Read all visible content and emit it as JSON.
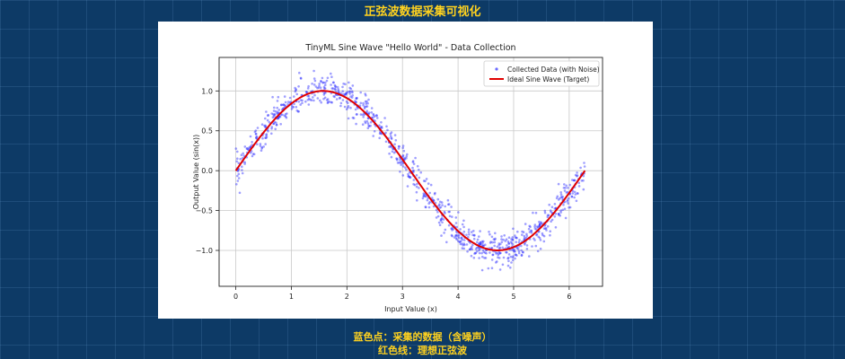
{
  "page": {
    "title": "正弦波数据采集可视化",
    "caption_lines": [
      "蓝色点：采集的数据（含噪声）",
      "红色线：理想正弦波"
    ]
  },
  "colors": {
    "background": "#0d3a66",
    "accent": "#ffd21f",
    "scatter": "#2b2bff",
    "line": "#e00000"
  },
  "chart_data": {
    "type": "scatter",
    "title": "TinyML Sine Wave \"Hello World\" - Data Collection",
    "xlabel": "Input Value (x)",
    "ylabel": "Output Value (sin(x))",
    "xlim": [
      -0.3,
      6.6
    ],
    "ylim": [
      -1.45,
      1.42
    ],
    "xticks": [
      0,
      1,
      2,
      3,
      4,
      5,
      6
    ],
    "yticks": [
      1.0,
      0.5,
      0.0,
      -0.5,
      -1.0
    ],
    "xtick_labels": [
      "0",
      "1",
      "2",
      "3",
      "4",
      "5",
      "6"
    ],
    "ytick_labels": [
      "1.0",
      "0.5",
      "0.0",
      "−0.5",
      "−1.0"
    ],
    "grid": true,
    "legend": {
      "position": "top-right"
    },
    "series": [
      {
        "name": "Collected Data (with Noise)",
        "kind": "scatter",
        "function": "sin(x) + noise",
        "x_range": [
          0,
          6.283
        ],
        "noise_std": 0.1,
        "point_count": 1000
      },
      {
        "name": "Ideal Sine Wave (Target)",
        "kind": "line",
        "function": "sin(x)",
        "x_range": [
          0,
          6.283
        ]
      }
    ]
  }
}
